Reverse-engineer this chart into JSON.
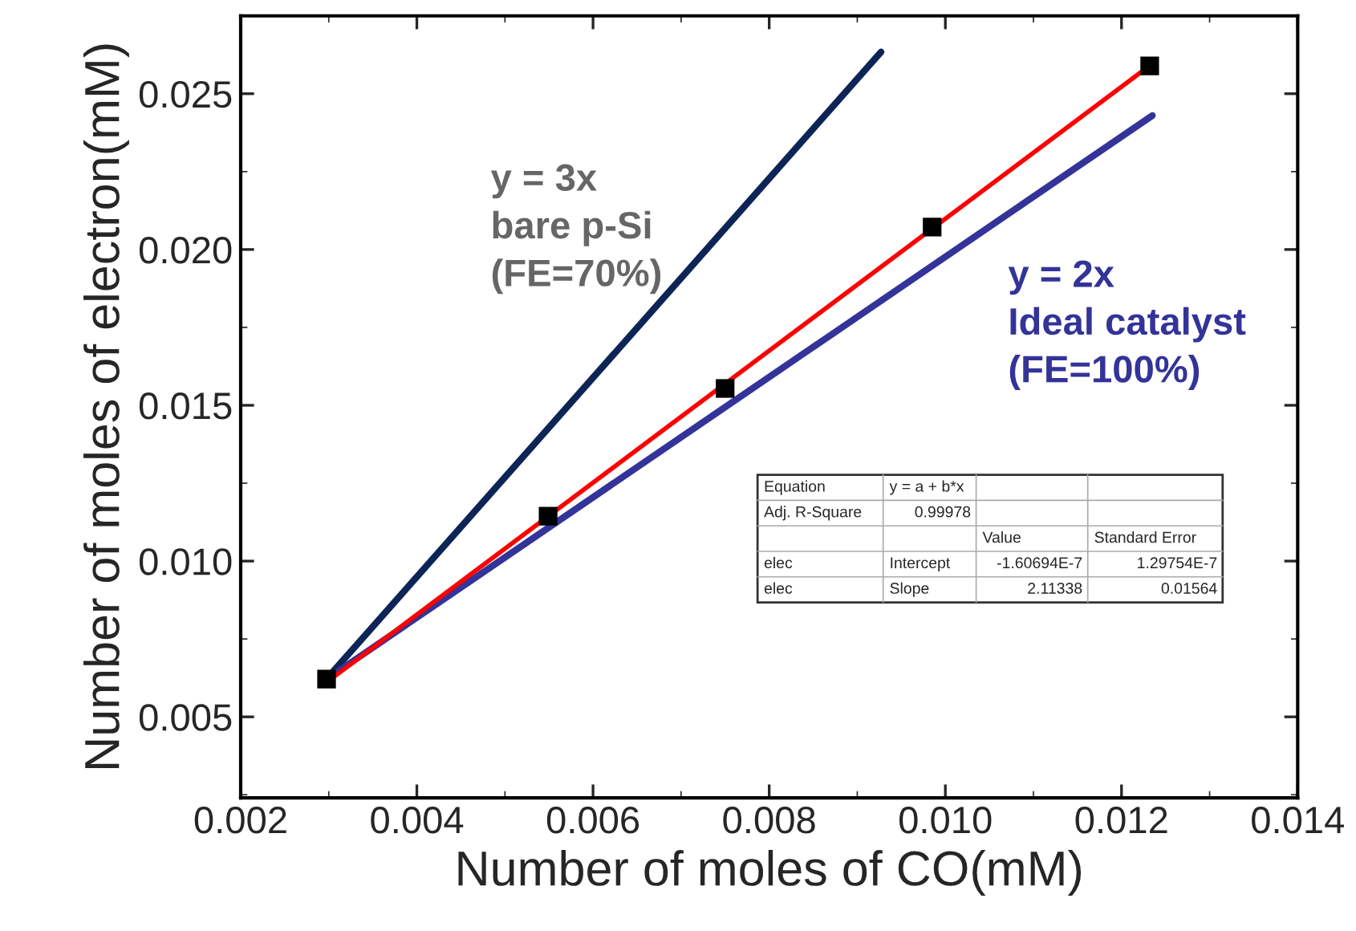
{
  "chart_data": {
    "type": "scatter",
    "xlabel": "Number of moles of CO(mM)",
    "ylabel": "Number of moles of electron(mM)",
    "xlim": [
      0.002,
      0.014
    ],
    "xticks": [
      {
        "value": 0.002,
        "label": "0.002"
      },
      {
        "value": 0.004,
        "label": "0.004"
      },
      {
        "value": 0.006,
        "label": "0.006"
      },
      {
        "value": 0.008,
        "label": "0.008"
      },
      {
        "value": 0.01,
        "label": "0.010"
      },
      {
        "value": 0.012,
        "label": "0.012"
      },
      {
        "value": 0.014,
        "label": "0.014"
      }
    ],
    "ylim": [
      0.0024,
      0.0275
    ],
    "yticks": [
      {
        "value": 0.005,
        "label": "0.005"
      },
      {
        "value": 0.01,
        "label": "0.010"
      },
      {
        "value": 0.015,
        "label": "0.015"
      },
      {
        "value": 0.02,
        "label": "0.020"
      },
      {
        "value": 0.025,
        "label": "0.025"
      }
    ],
    "grid": false,
    "legend": false,
    "series": [
      {
        "type": "line",
        "marker": "none",
        "color": "#0d2456",
        "x": [
          0.00297,
          0.00927
        ],
        "values": [
          0.0062,
          0.02634
        ]
      },
      {
        "type": "line",
        "marker": "none",
        "color": "#333399",
        "x": [
          0.00297,
          0.01235
        ],
        "values": [
          0.0062,
          0.0243
        ]
      },
      {
        "type": "line",
        "marker": "none",
        "color": "#ff0000",
        "x": [
          0.00297,
          0.01232
        ],
        "values": [
          0.0061,
          0.0259
        ]
      },
      {
        "marker": "square",
        "color": "#000000",
        "x": [
          0.002975,
          0.00549,
          0.0075,
          0.00985,
          0.01232
        ],
        "values": [
          0.00621,
          0.01144,
          0.01554,
          0.02072,
          0.02589
        ]
      }
    ],
    "annotations": [
      "y = 3x\nbare p-Si\n(FE=70%)",
      "y = 2x\nIdeal catalyst\n(FE=100%)",
      "Equation",
      "y = a + b*x",
      "Adj. R-Square",
      "0.99978",
      "Value",
      "Standard Error",
      "elec",
      "Intercept",
      "-1.60694E-7",
      "1.29754E-7",
      "elec",
      "Slope",
      "2.11338",
      "0.01564"
    ]
  }
}
